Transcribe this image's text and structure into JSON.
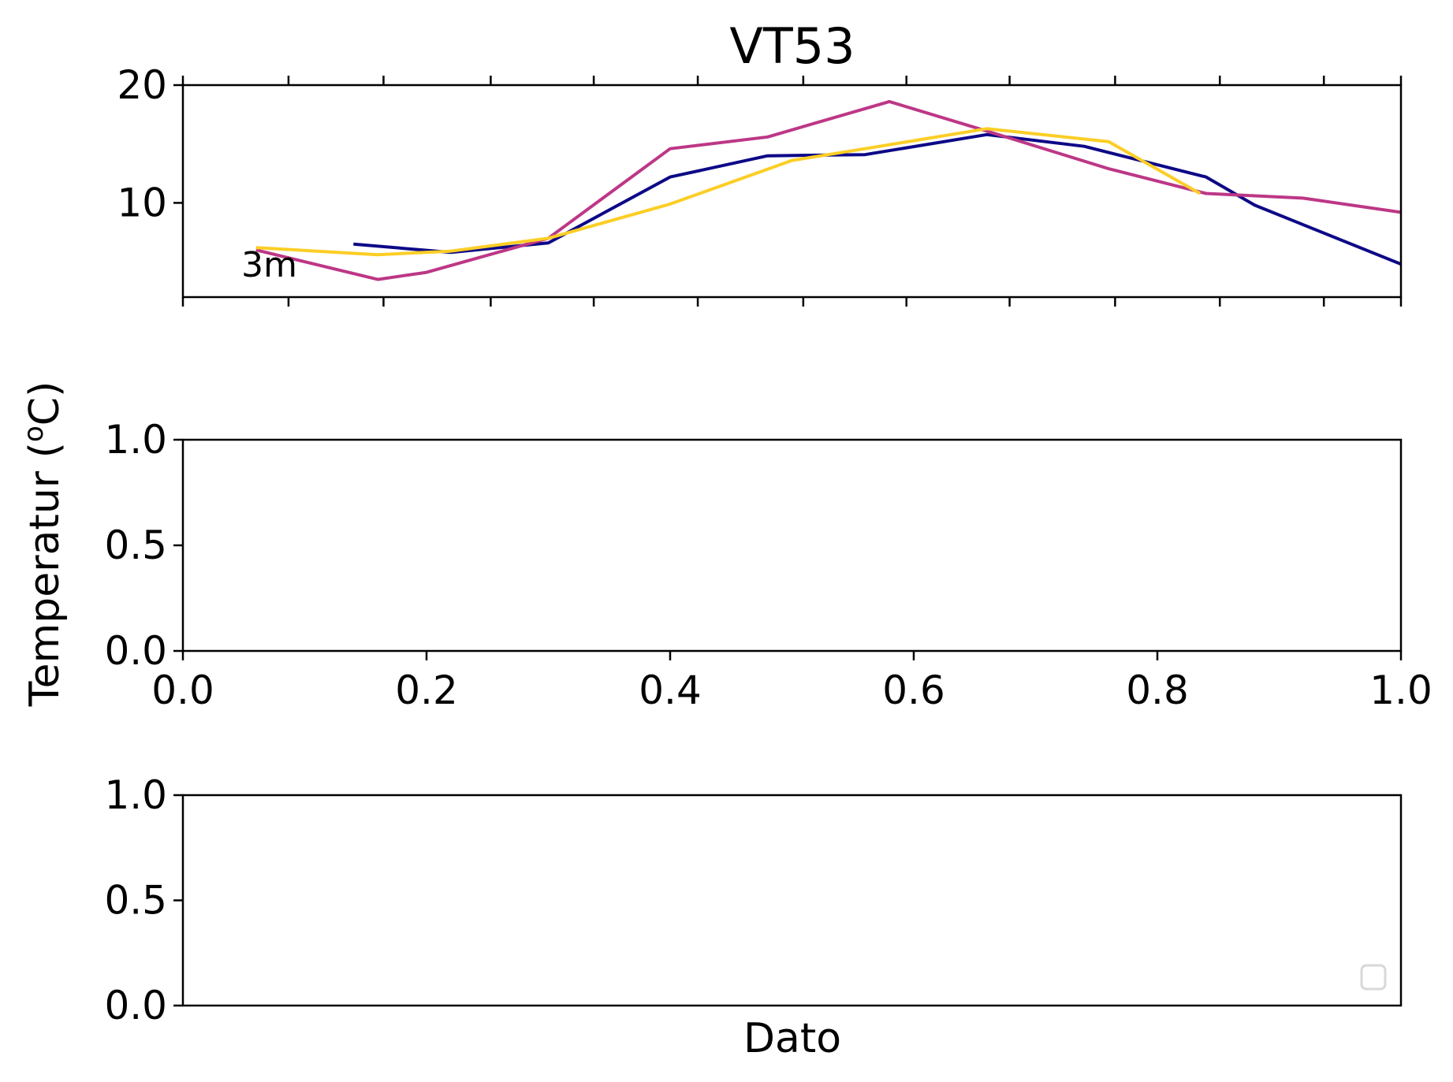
{
  "chart_data": {
    "title": "VT53",
    "xlabel": "Dato",
    "ylabel": "Temperatur (",
    "ylabel_sup": "o",
    "ylabel_end": "C)",
    "legend": {
      "location": "lower right",
      "entries": []
    },
    "panels": [
      {
        "type": "line",
        "annotation": "3m",
        "ylim": [
          2,
          20
        ],
        "yticks": [
          "20",
          "10"
        ],
        "ytick_values": [
          20,
          10
        ],
        "xlim": [
          0,
          1
        ],
        "show_xtick_labels": false,
        "xtick_positions": [
          0,
          0.0867,
          0.1647,
          0.2527,
          0.3373,
          0.4227,
          0.5093,
          0.594,
          0.6787,
          0.7653,
          0.8513,
          0.9367,
          1.0
        ],
        "series": [
          {
            "color": "#0d0887",
            "x": [
              0.14,
              0.22,
              0.3,
              0.4,
              0.48,
              0.56,
              0.66,
              0.74,
              0.84,
              0.88,
              1.0
            ],
            "y": [
              6.5,
              5.8,
              6.6,
              12.2,
              14.0,
              14.1,
              15.8,
              14.8,
              12.2,
              9.8,
              4.8
            ]
          },
          {
            "color": "#bd3786",
            "x": [
              0.06,
              0.16,
              0.2,
              0.3,
              0.4,
              0.48,
              0.58,
              0.66,
              0.76,
              0.84,
              0.92,
              1.0
            ],
            "y": [
              6.0,
              3.5,
              4.1,
              7.0,
              14.6,
              15.6,
              18.6,
              16.1,
              12.9,
              10.8,
              10.4,
              9.2
            ]
          },
          {
            "color": "#fcce25",
            "x": [
              0.06,
              0.16,
              0.22,
              0.3,
              0.4,
              0.5,
              0.56,
              0.66,
              0.76,
              0.835
            ],
            "y": [
              6.2,
              5.6,
              5.9,
              7.0,
              9.9,
              13.6,
              14.6,
              16.3,
              15.2,
              10.8
            ]
          }
        ]
      },
      {
        "type": "line",
        "ylim": [
          0,
          1
        ],
        "yticks": [
          "0.0",
          "0.5",
          "1.0"
        ],
        "ytick_values": [
          0,
          0.5,
          1
        ],
        "xlim": [
          0,
          1
        ],
        "show_xtick_labels": true,
        "xticks": [
          "0.0",
          "0.2",
          "0.4",
          "0.6",
          "0.8",
          "1.0"
        ],
        "xtick_values": [
          0,
          0.2,
          0.4,
          0.6,
          0.8,
          1.0
        ],
        "series": []
      },
      {
        "type": "line",
        "ylim": [
          0,
          1
        ],
        "yticks": [
          "0.0",
          "0.5",
          "1.0"
        ],
        "ytick_values": [
          0,
          0.5,
          1
        ],
        "xlim": [
          0,
          1
        ],
        "show_xtick_labels": false,
        "series": []
      }
    ]
  }
}
